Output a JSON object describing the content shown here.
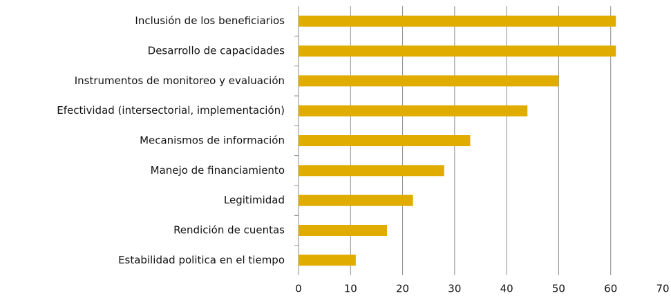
{
  "chart_data": {
    "type": "bar",
    "orientation": "horizontal",
    "categories": [
      "Inclusión de los beneficiarios",
      "Desarrollo de capacidades",
      "Instrumentos de monitoreo y evaluación",
      "Efectividad (intersectorial, implementación)",
      "Mecanismos de información",
      "Manejo de financiamiento",
      "Legitimidad",
      "Rendición de cuentas",
      "Estabilidad politica en el tiempo"
    ],
    "values": [
      61,
      61,
      50,
      44,
      33,
      28,
      22,
      17,
      11
    ],
    "color": "#e0ac00",
    "xlim": [
      0,
      70
    ],
    "xticks": [
      0,
      10,
      20,
      30,
      40,
      50,
      60,
      70
    ],
    "grid": true
  }
}
